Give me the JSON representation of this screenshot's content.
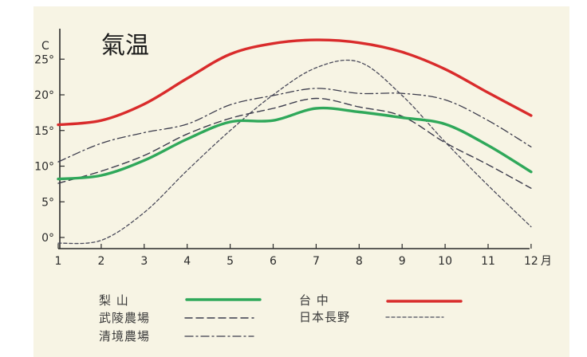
{
  "chart_data": {
    "type": "line",
    "title": "氣温",
    "ylabel": "C",
    "xlabel": "",
    "x": [
      1,
      2,
      3,
      4,
      5,
      6,
      7,
      8,
      9,
      10,
      11,
      12
    ],
    "x_tick_labels": [
      "1",
      "2",
      "3",
      "4",
      "5",
      "6",
      "7",
      "8",
      "9",
      "10",
      "11",
      "12"
    ],
    "x_unit": "月",
    "ylim": [
      0,
      25
    ],
    "y_ticks": [
      0,
      5,
      10,
      15,
      20,
      25
    ],
    "y_tick_labels": [
      "0°",
      "5°",
      "10°",
      "15°",
      "20°",
      "25°"
    ],
    "grid": false,
    "legend_position": "bottom",
    "series": [
      {
        "name": "梨 山",
        "style": "solid-thick",
        "color": "#2fa85a",
        "values": [
          8.2,
          8.7,
          10.8,
          13.8,
          16.2,
          16.4,
          18.1,
          17.6,
          16.8,
          15.9,
          12.9,
          9.2
        ]
      },
      {
        "name": "台 中",
        "style": "solid-thick",
        "color": "#d92b2b",
        "values": [
          15.8,
          16.4,
          18.7,
          22.3,
          25.7,
          27.2,
          27.7,
          27.3,
          26.0,
          23.6,
          20.3,
          17.1
        ]
      },
      {
        "name": "武陵農場",
        "style": "dashed",
        "color": "#3c3c4c",
        "values": [
          7.6,
          9.3,
          11.5,
          14.5,
          16.7,
          18.1,
          19.5,
          18.3,
          17.0,
          13.3,
          10.2,
          6.9
        ]
      },
      {
        "name": "清境農場",
        "style": "dash-dot",
        "color": "#3c3c4c",
        "values": [
          10.6,
          13.2,
          14.7,
          15.9,
          18.6,
          19.9,
          20.9,
          20.2,
          20.2,
          19.3,
          16.4,
          12.7
        ]
      },
      {
        "name": "日本長野",
        "style": "dotted",
        "color": "#4a4a5a",
        "values": [
          -0.8,
          -0.4,
          3.5,
          9.4,
          15.0,
          20.0,
          23.8,
          24.6,
          19.9,
          13.4,
          7.3,
          1.5
        ]
      }
    ]
  }
}
